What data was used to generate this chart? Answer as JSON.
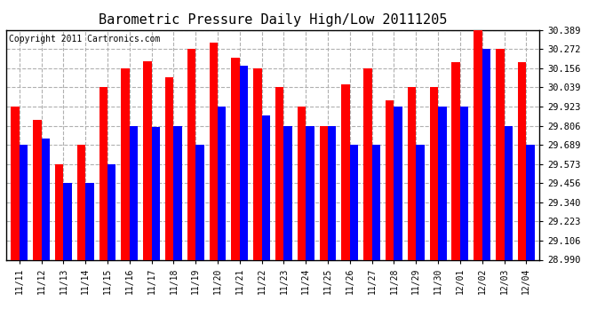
{
  "title": "Barometric Pressure Daily High/Low 20111205",
  "copyright": "Copyright 2011 Cartronics.com",
  "ylabel_ticks": [
    28.99,
    29.106,
    29.223,
    29.34,
    29.456,
    29.573,
    29.689,
    29.806,
    29.923,
    30.039,
    30.156,
    30.272,
    30.389
  ],
  "dates": [
    "11/11",
    "11/12",
    "11/13",
    "11/14",
    "11/15",
    "11/16",
    "11/17",
    "11/18",
    "11/19",
    "11/20",
    "11/21",
    "11/22",
    "11/23",
    "11/24",
    "11/25",
    "11/26",
    "11/27",
    "11/28",
    "11/29",
    "11/30",
    "12/01",
    "12/02",
    "12/03",
    "12/04"
  ],
  "highs": [
    29.923,
    29.84,
    29.573,
    29.689,
    30.039,
    30.156,
    30.2,
    30.1,
    30.272,
    30.31,
    30.22,
    30.156,
    30.039,
    29.923,
    29.806,
    30.06,
    30.156,
    29.96,
    30.039,
    30.039,
    30.195,
    30.389,
    30.272,
    30.195
  ],
  "lows": [
    29.689,
    29.73,
    29.456,
    29.456,
    29.573,
    29.806,
    29.8,
    29.806,
    29.689,
    29.923,
    30.17,
    29.87,
    29.806,
    29.806,
    29.806,
    29.689,
    29.689,
    29.923,
    29.689,
    29.923,
    29.923,
    30.272,
    29.806,
    29.689
  ],
  "high_color": "#ff0000",
  "low_color": "#0000ff",
  "bg_color": "#ffffff",
  "plot_bg_color": "#ffffff",
  "grid_color": "#b0b0b0",
  "ylim_min": 28.99,
  "ylim_max": 30.389,
  "bar_width": 0.38,
  "title_fontsize": 11,
  "copyright_fontsize": 7
}
